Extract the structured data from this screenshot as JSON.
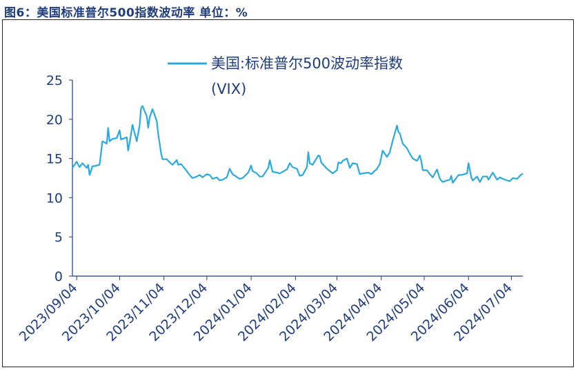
{
  "figure": {
    "title": "图6：美国标准普尔500指数波动率  单位：%"
  },
  "colors": {
    "series": "#29a9dc",
    "text": "#1f3d7a",
    "axis": "#1f3d7a"
  },
  "chart_data": {
    "type": "line",
    "title": "",
    "xlabel": "",
    "ylabel": "",
    "x_range": [
      "2023-09-01",
      "2024-07-12"
    ],
    "ylim": [
      0,
      25
    ],
    "yticks": [
      "0",
      "5",
      "10",
      "15",
      "20",
      "25"
    ],
    "xticks": [
      "2023/09/04",
      "2023/10/04",
      "2023/11/04",
      "2023/12/04",
      "2024/01/04",
      "2024/02/04",
      "2024/03/04",
      "2024/04/04",
      "2024/05/04",
      "2024/06/04",
      "2024/07/04"
    ],
    "grid": false,
    "legend": "top",
    "series": [
      {
        "name": "美国:标准普尔500波动率指数 (VIX)",
        "points": [
          [
            "2023-09-01",
            13.8
          ],
          [
            "2023-09-04",
            14.6
          ],
          [
            "2023-09-06",
            13.9
          ],
          [
            "2023-09-08",
            14.4
          ],
          [
            "2023-09-11",
            13.8
          ],
          [
            "2023-09-12",
            14.2
          ],
          [
            "2023-09-13",
            12.9
          ],
          [
            "2023-09-15",
            14.0
          ],
          [
            "2023-09-18",
            14.1
          ],
          [
            "2023-09-20",
            14.2
          ],
          [
            "2023-09-22",
            17.2
          ],
          [
            "2023-09-25",
            16.9
          ],
          [
            "2023-09-26",
            18.9
          ],
          [
            "2023-09-27",
            17.2
          ],
          [
            "2023-09-29",
            17.5
          ],
          [
            "2023-10-02",
            17.6
          ],
          [
            "2023-10-04",
            18.6
          ],
          [
            "2023-10-05",
            17.4
          ],
          [
            "2023-10-06",
            17.5
          ],
          [
            "2023-10-09",
            17.7
          ],
          [
            "2023-10-10",
            16.0
          ],
          [
            "2023-10-11",
            17.0
          ],
          [
            "2023-10-13",
            19.3
          ],
          [
            "2023-10-16",
            17.2
          ],
          [
            "2023-10-18",
            19.2
          ],
          [
            "2023-10-19",
            21.4
          ],
          [
            "2023-10-20",
            21.7
          ],
          [
            "2023-10-23",
            20.4
          ],
          [
            "2023-10-24",
            18.9
          ],
          [
            "2023-10-25",
            20.2
          ],
          [
            "2023-10-27",
            21.3
          ],
          [
            "2023-10-30",
            19.8
          ],
          [
            "2023-10-31",
            18.1
          ],
          [
            "2023-11-01",
            16.9
          ],
          [
            "2023-11-02",
            15.7
          ],
          [
            "2023-11-03",
            14.9
          ],
          [
            "2023-11-06",
            14.9
          ],
          [
            "2023-11-08",
            14.5
          ],
          [
            "2023-11-10",
            14.2
          ],
          [
            "2023-11-13",
            14.8
          ],
          [
            "2023-11-14",
            14.2
          ],
          [
            "2023-11-16",
            14.3
          ],
          [
            "2023-11-20",
            13.4
          ],
          [
            "2023-11-22",
            12.9
          ],
          [
            "2023-11-24",
            12.5
          ],
          [
            "2023-11-27",
            12.7
          ],
          [
            "2023-11-29",
            12.9
          ],
          [
            "2023-12-01",
            12.6
          ],
          [
            "2023-12-04",
            13.0
          ],
          [
            "2023-12-06",
            12.9
          ],
          [
            "2023-12-08",
            12.4
          ],
          [
            "2023-12-11",
            12.6
          ],
          [
            "2023-12-13",
            12.2
          ],
          [
            "2023-12-15",
            12.3
          ],
          [
            "2023-12-18",
            12.6
          ],
          [
            "2023-12-20",
            13.7
          ],
          [
            "2023-12-22",
            13.0
          ],
          [
            "2023-12-27",
            12.4
          ],
          [
            "2023-12-29",
            12.5
          ],
          [
            "2024-01-02",
            13.2
          ],
          [
            "2024-01-04",
            14.1
          ],
          [
            "2024-01-05",
            13.4
          ],
          [
            "2024-01-08",
            13.1
          ],
          [
            "2024-01-10",
            12.7
          ],
          [
            "2024-01-12",
            12.7
          ],
          [
            "2024-01-16",
            13.8
          ],
          [
            "2024-01-17",
            14.8
          ],
          [
            "2024-01-19",
            13.3
          ],
          [
            "2024-01-22",
            13.2
          ],
          [
            "2024-01-24",
            13.1
          ],
          [
            "2024-01-26",
            13.3
          ],
          [
            "2024-01-29",
            13.6
          ],
          [
            "2024-01-31",
            14.4
          ],
          [
            "2024-02-02",
            13.9
          ],
          [
            "2024-02-05",
            13.7
          ],
          [
            "2024-02-07",
            12.8
          ],
          [
            "2024-02-09",
            12.9
          ],
          [
            "2024-02-12",
            13.9
          ],
          [
            "2024-02-13",
            15.8
          ],
          [
            "2024-02-14",
            14.4
          ],
          [
            "2024-02-16",
            14.2
          ],
          [
            "2024-02-20",
            15.4
          ],
          [
            "2024-02-21",
            15.3
          ],
          [
            "2024-02-22",
            14.5
          ],
          [
            "2024-02-26",
            13.7
          ],
          [
            "2024-02-28",
            13.4
          ],
          [
            "2024-03-01",
            13.1
          ],
          [
            "2024-03-04",
            13.5
          ],
          [
            "2024-03-05",
            14.5
          ],
          [
            "2024-03-07",
            14.4
          ],
          [
            "2024-03-08",
            14.7
          ],
          [
            "2024-03-11",
            15.0
          ],
          [
            "2024-03-13",
            13.8
          ],
          [
            "2024-03-15",
            14.4
          ],
          [
            "2024-03-18",
            14.3
          ],
          [
            "2024-03-20",
            13.0
          ],
          [
            "2024-03-22",
            13.1
          ],
          [
            "2024-03-26",
            13.2
          ],
          [
            "2024-03-28",
            13.0
          ],
          [
            "2024-04-01",
            13.7
          ],
          [
            "2024-04-03",
            14.3
          ],
          [
            "2024-04-05",
            16.0
          ],
          [
            "2024-04-08",
            15.2
          ],
          [
            "2024-04-10",
            15.8
          ],
          [
            "2024-04-12",
            17.3
          ],
          [
            "2024-04-15",
            19.2
          ],
          [
            "2024-04-16",
            18.4
          ],
          [
            "2024-04-17",
            18.2
          ],
          [
            "2024-04-19",
            16.9
          ],
          [
            "2024-04-22",
            16.3
          ],
          [
            "2024-04-24",
            15.6
          ],
          [
            "2024-04-26",
            15.0
          ],
          [
            "2024-04-29",
            14.7
          ],
          [
            "2024-05-01",
            15.4
          ],
          [
            "2024-05-02",
            14.7
          ],
          [
            "2024-05-03",
            13.5
          ],
          [
            "2024-05-06",
            13.5
          ],
          [
            "2024-05-08",
            13.0
          ],
          [
            "2024-05-10",
            12.6
          ],
          [
            "2024-05-13",
            13.6
          ],
          [
            "2024-05-15",
            12.4
          ],
          [
            "2024-05-17",
            12.0
          ],
          [
            "2024-05-20",
            12.2
          ],
          [
            "2024-05-22",
            12.3
          ],
          [
            "2024-05-23",
            12.8
          ],
          [
            "2024-05-24",
            11.9
          ],
          [
            "2024-05-28",
            12.9
          ],
          [
            "2024-05-30",
            12.9
          ],
          [
            "2024-06-03",
            13.1
          ],
          [
            "2024-06-04",
            14.4
          ],
          [
            "2024-06-06",
            12.6
          ],
          [
            "2024-06-07",
            12.2
          ],
          [
            "2024-06-10",
            12.7
          ],
          [
            "2024-06-12",
            12.0
          ],
          [
            "2024-06-14",
            12.7
          ],
          [
            "2024-06-17",
            12.7
          ],
          [
            "2024-06-18",
            12.3
          ],
          [
            "2024-06-21",
            13.2
          ],
          [
            "2024-06-24",
            12.3
          ],
          [
            "2024-06-26",
            12.6
          ],
          [
            "2024-06-28",
            12.4
          ],
          [
            "2024-07-01",
            12.2
          ],
          [
            "2024-07-03",
            12.1
          ],
          [
            "2024-07-05",
            12.5
          ],
          [
            "2024-07-08",
            12.4
          ],
          [
            "2024-07-10",
            12.8
          ],
          [
            "2024-07-12",
            13.1
          ]
        ]
      }
    ]
  }
}
